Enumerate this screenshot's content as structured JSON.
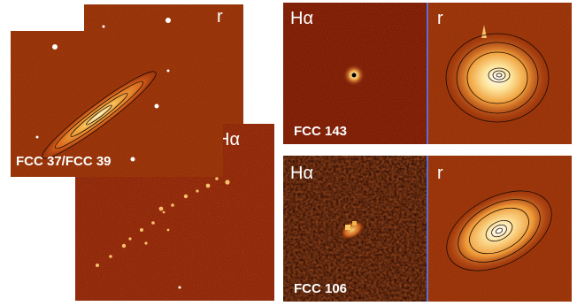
{
  "figure": {
    "left_group": {
      "r_label": "r",
      "halpha_label": "Hα",
      "galaxy_label": "FCC 37/FCC 39"
    },
    "top_right": {
      "halpha_label": "Hα",
      "r_label": "r",
      "galaxy_label": "FCC 143"
    },
    "bottom_right": {
      "halpha_label": "Hα",
      "r_label": "r",
      "galaxy_label": "FCC 106"
    }
  },
  "colors": {
    "background": "#b03a0e",
    "background_dark": "#7a1d06",
    "core": "#fff6c8",
    "contour": "#1a0a04",
    "divider": "#5a6fd0"
  }
}
